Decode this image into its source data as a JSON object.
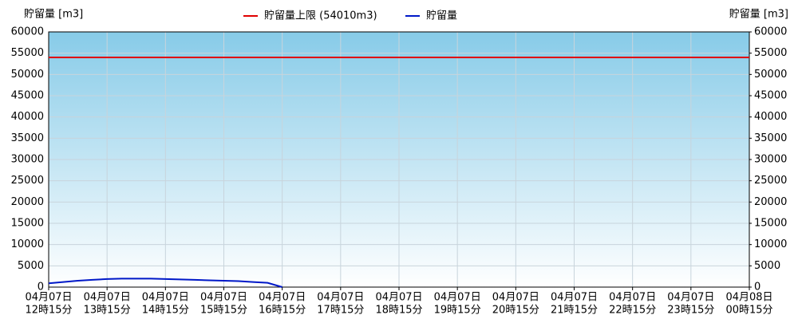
{
  "chart_data": {
    "type": "line",
    "y_axis_label": "貯留量 [m3]",
    "y2_axis_label": "貯留量 [m3]",
    "ylim": [
      0,
      60000
    ],
    "yticks": [
      0,
      5000,
      10000,
      15000,
      20000,
      25000,
      30000,
      35000,
      40000,
      45000,
      50000,
      55000,
      60000
    ],
    "y2lim": [
      0,
      60000
    ],
    "y2ticks": [
      0,
      5000,
      10000,
      15000,
      20000,
      25000,
      30000,
      35000,
      40000,
      45000,
      50000,
      55000,
      60000
    ],
    "xlim": [
      "04-07 12:15",
      "04-08 00:15"
    ],
    "xticks": [
      {
        "value": "04-07 12:15",
        "label": [
          "04月07日",
          "12時15分"
        ]
      },
      {
        "value": "04-07 13:15",
        "label": [
          "04月07日",
          "13時15分"
        ]
      },
      {
        "value": "04-07 14:15",
        "label": [
          "04月07日",
          "14時15分"
        ]
      },
      {
        "value": "04-07 15:15",
        "label": [
          "04月07日",
          "15時15分"
        ]
      },
      {
        "value": "04-07 16:15",
        "label": [
          "04月07日",
          "16時15分"
        ]
      },
      {
        "value": "04-07 17:15",
        "label": [
          "04月07日",
          "17時15分"
        ]
      },
      {
        "value": "04-07 18:15",
        "label": [
          "04月07日",
          "18時15分"
        ]
      },
      {
        "value": "04-07 19:15",
        "label": [
          "04月07日",
          "19時15分"
        ]
      },
      {
        "value": "04-07 20:15",
        "label": [
          "04月07日",
          "20時15分"
        ]
      },
      {
        "value": "04-07 21:15",
        "label": [
          "04月07日",
          "21時15分"
        ]
      },
      {
        "value": "04-07 22:15",
        "label": [
          "04月07日",
          "22時15分"
        ]
      },
      {
        "value": "04-07 23:15",
        "label": [
          "04月07日",
          "23時15分"
        ]
      },
      {
        "value": "04-08 00:15",
        "label": [
          "04月08日",
          "00時15分"
        ]
      }
    ],
    "grid": true,
    "limit": {
      "name": "貯留量上限 (54010m3)",
      "value": 54010,
      "color": "#e00000"
    },
    "series": [
      {
        "name": "貯留量",
        "color": "#0018c8",
        "x": [
          "04-07 12:15",
          "04-07 12:30",
          "04-07 12:45",
          "04-07 13:00",
          "04-07 13:15",
          "04-07 13:30",
          "04-07 13:45",
          "04-07 14:00",
          "04-07 14:15",
          "04-07 14:30",
          "04-07 14:45",
          "04-07 15:00",
          "04-07 15:15",
          "04-07 15:30",
          "04-07 15:45",
          "04-07 16:00",
          "04-07 16:15"
        ],
        "values": [
          900,
          1200,
          1500,
          1700,
          1900,
          2000,
          2000,
          2000,
          1900,
          1800,
          1700,
          1600,
          1500,
          1400,
          1200,
          1000,
          0
        ]
      }
    ]
  }
}
